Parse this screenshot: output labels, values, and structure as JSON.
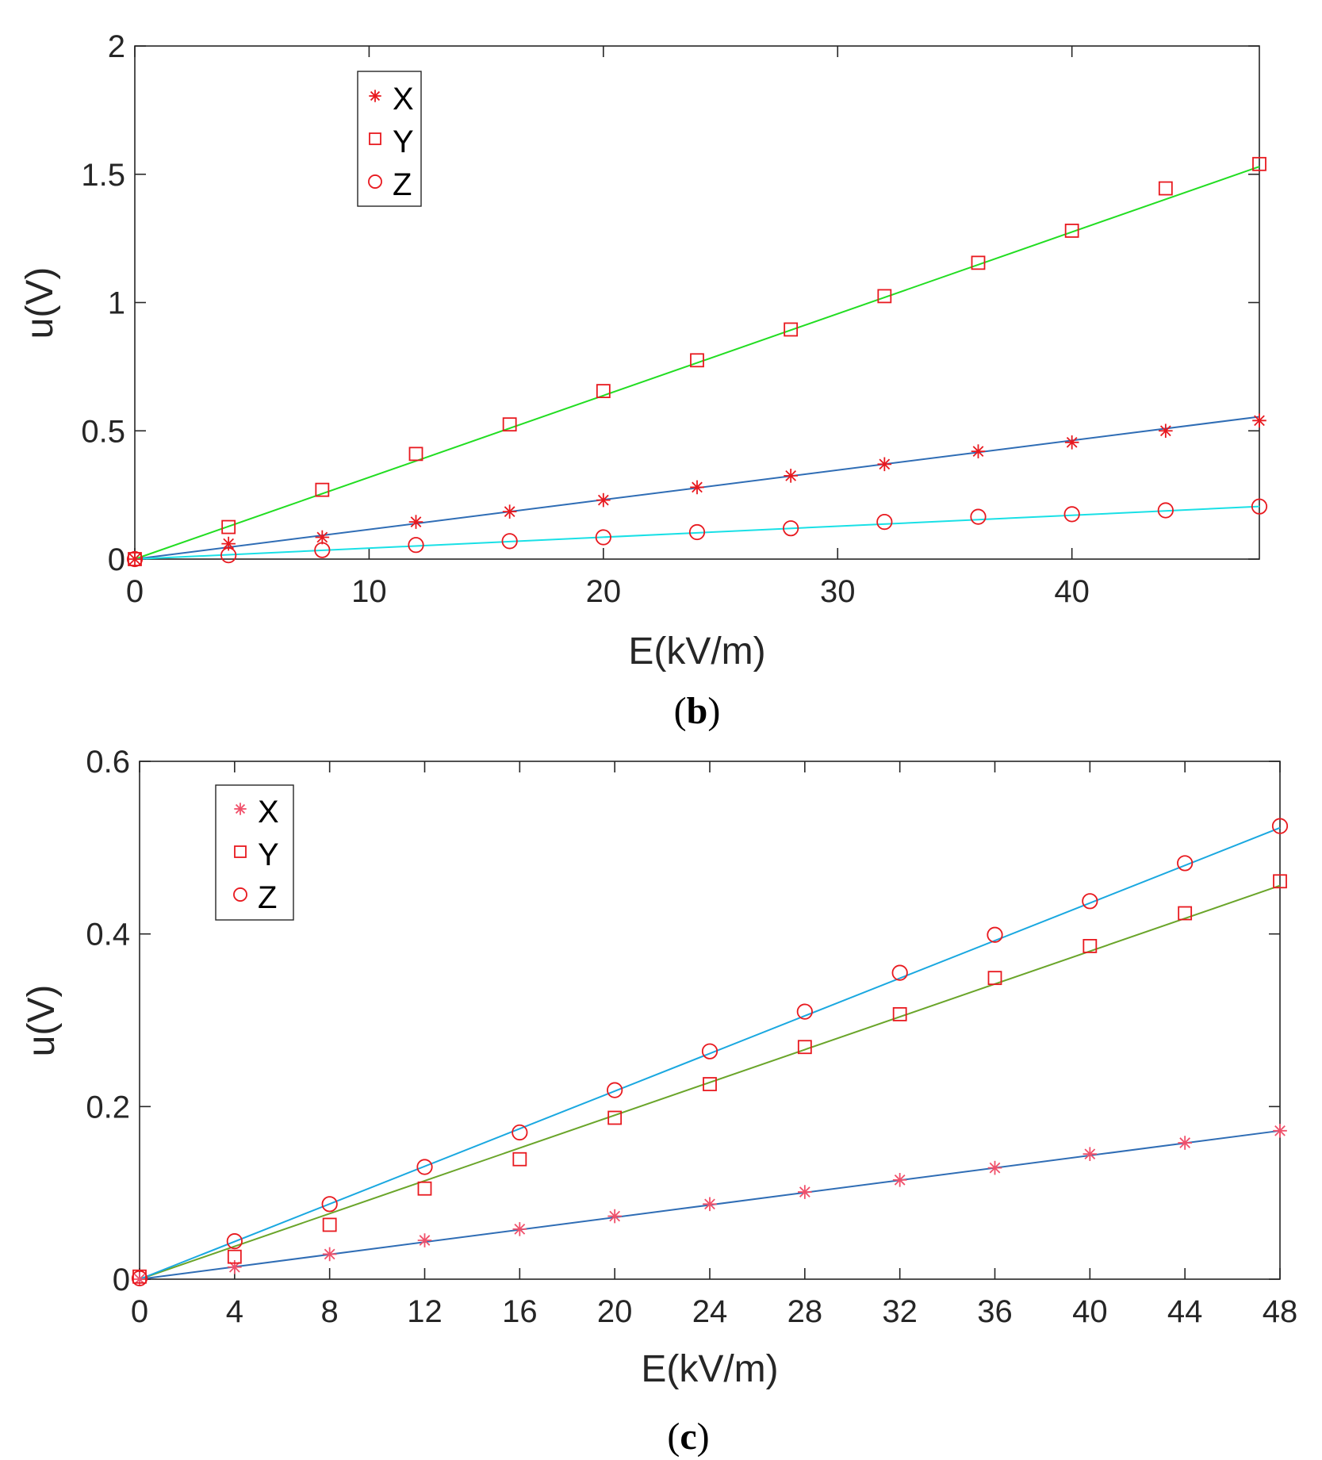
{
  "chart_data": [
    {
      "id": "b",
      "type": "scatter",
      "caption": {
        "open": "(",
        "letter": "b",
        "close": ")"
      },
      "xlabel": "E(kV/m)",
      "ylabel": "u(V)",
      "xlim": [
        0,
        48
      ],
      "ylim": [
        0,
        2
      ],
      "xticks": [
        0,
        10,
        20,
        30,
        40
      ],
      "xtick_labels": [
        "0",
        "10",
        "20",
        "30",
        "40"
      ],
      "yticks": [
        0,
        0.5,
        1,
        1.5,
        2
      ],
      "ytick_labels": [
        "0",
        "0.5",
        "1",
        "1.5",
        "2"
      ],
      "legend_position": "top-left",
      "x": [
        0,
        4,
        8,
        12,
        16,
        20,
        24,
        28,
        32,
        36,
        40,
        44,
        48
      ],
      "series": [
        {
          "name": "X",
          "marker": "star",
          "marker_color": "#e8191f",
          "fit_color": "#2f6db5",
          "values": [
            0,
            0.06,
            0.085,
            0.145,
            0.185,
            0.23,
            0.28,
            0.325,
            0.37,
            0.42,
            0.455,
            0.5,
            0.54
          ],
          "fit": [
            0,
            0.555
          ]
        },
        {
          "name": "Y",
          "marker": "square",
          "marker_color": "#e8191f",
          "fit_color": "#22dd22",
          "values": [
            0,
            0.125,
            0.27,
            0.41,
            0.525,
            0.655,
            0.775,
            0.895,
            1.025,
            1.155,
            1.28,
            1.445,
            1.54
          ],
          "fit": [
            0,
            1.53
          ]
        },
        {
          "name": "Z",
          "marker": "circle",
          "marker_color": "#e8191f",
          "fit_color": "#19e0e6",
          "values": [
            0,
            0.015,
            0.035,
            0.055,
            0.07,
            0.085,
            0.105,
            0.12,
            0.145,
            0.165,
            0.175,
            0.19,
            0.205
          ],
          "fit": [
            0,
            0.205
          ]
        }
      ]
    },
    {
      "id": "c",
      "type": "scatter",
      "caption": {
        "open": "(",
        "letter": "c",
        "close": ")"
      },
      "xlabel": "E(kV/m)",
      "ylabel": "u(V)",
      "xlim": [
        0,
        48
      ],
      "ylim": [
        0,
        0.6
      ],
      "xticks": [
        0,
        4,
        8,
        12,
        16,
        20,
        24,
        28,
        32,
        36,
        40,
        44,
        48
      ],
      "xtick_labels": [
        "0",
        "4",
        "8",
        "12",
        "16",
        "20",
        "24",
        "28",
        "32",
        "36",
        "40",
        "44",
        "48"
      ],
      "yticks": [
        0,
        0.2,
        0.4,
        0.6
      ],
      "ytick_labels": [
        "0",
        "0.2",
        "0.4",
        "0.6"
      ],
      "legend_position": "top-left",
      "x": [
        0,
        4,
        8,
        12,
        16,
        20,
        24,
        28,
        32,
        36,
        40,
        44,
        48
      ],
      "series": [
        {
          "name": "X",
          "marker": "star",
          "marker_color": "#f0506a",
          "fit_color": "#2f6db5",
          "values": [
            0,
            0.014,
            0.029,
            0.045,
            0.058,
            0.073,
            0.087,
            0.101,
            0.115,
            0.129,
            0.145,
            0.158,
            0.172
          ],
          "fit": [
            0,
            0.172
          ]
        },
        {
          "name": "Y",
          "marker": "square",
          "marker_color": "#e8191f",
          "fit_color": "#6aa52a",
          "values": [
            0.003,
            0.026,
            0.063,
            0.105,
            0.139,
            0.187,
            0.226,
            0.269,
            0.307,
            0.349,
            0.386,
            0.424,
            0.461
          ],
          "fit": [
            0,
            0.456
          ]
        },
        {
          "name": "Z",
          "marker": "circle",
          "marker_color": "#e8191f",
          "fit_color": "#1aa8e0",
          "values": [
            0.001,
            0.044,
            0.087,
            0.13,
            0.17,
            0.219,
            0.264,
            0.31,
            0.355,
            0.399,
            0.438,
            0.482,
            0.525
          ],
          "fit": [
            0,
            0.523
          ]
        }
      ]
    }
  ]
}
